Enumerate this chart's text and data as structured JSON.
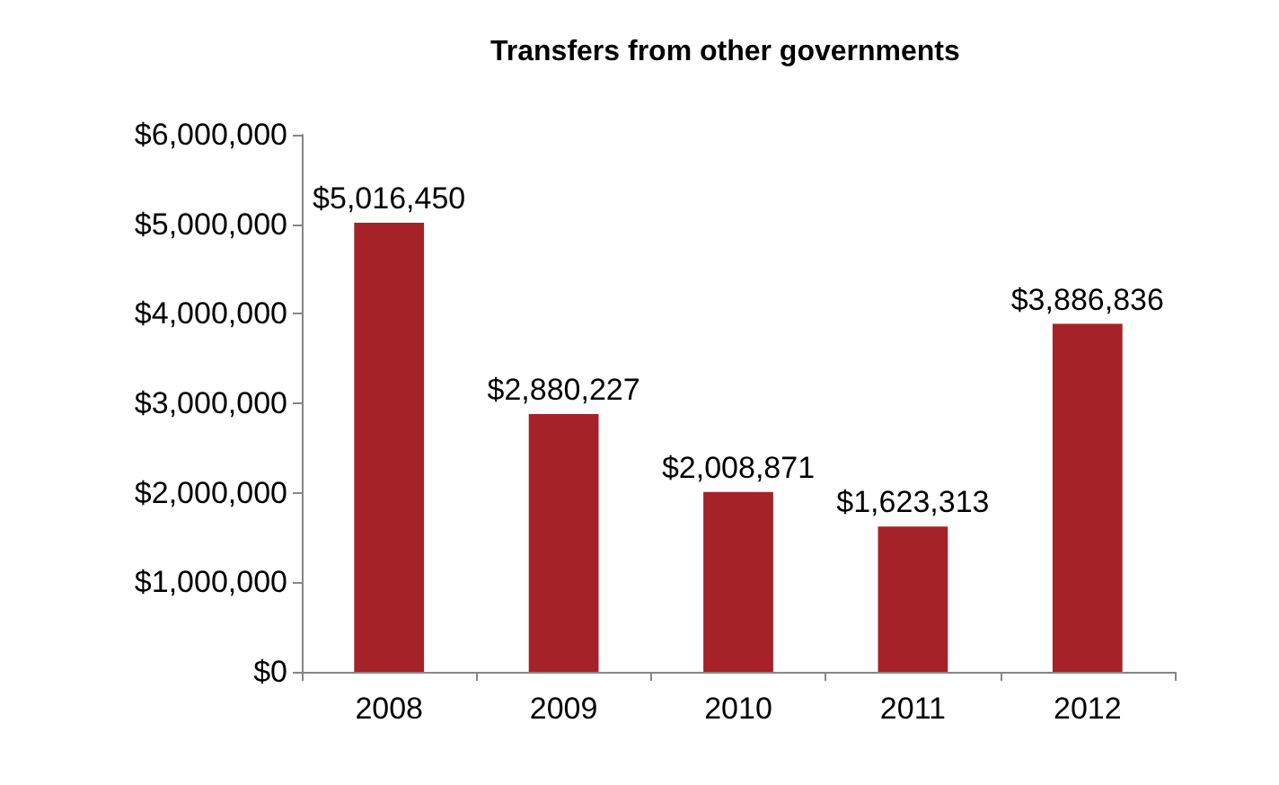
{
  "chart_data": {
    "type": "bar",
    "title": "Transfers from other governments",
    "categories": [
      "2008",
      "2009",
      "2010",
      "2011",
      "2012"
    ],
    "values": [
      5016450,
      2880227,
      2008871,
      1623313,
      3886836
    ],
    "value_labels": [
      "$5,016,450",
      "$2,880,227",
      "$2,008,871",
      "$1,623,313",
      "$3,886,836"
    ],
    "color": "#a52228",
    "ylim": [
      0,
      6000000
    ],
    "yticks": [
      {
        "value": 0,
        "label": "$0"
      },
      {
        "value": 1000000,
        "label": "$1,000,000"
      },
      {
        "value": 2000000,
        "label": "$2,000,000"
      },
      {
        "value": 3000000,
        "label": "$3,000,000"
      },
      {
        "value": 4000000,
        "label": "$4,000,000"
      },
      {
        "value": 5000000,
        "label": "$5,000,000"
      },
      {
        "value": 6000000,
        "label": "$6,000,000"
      }
    ],
    "grid": false
  }
}
